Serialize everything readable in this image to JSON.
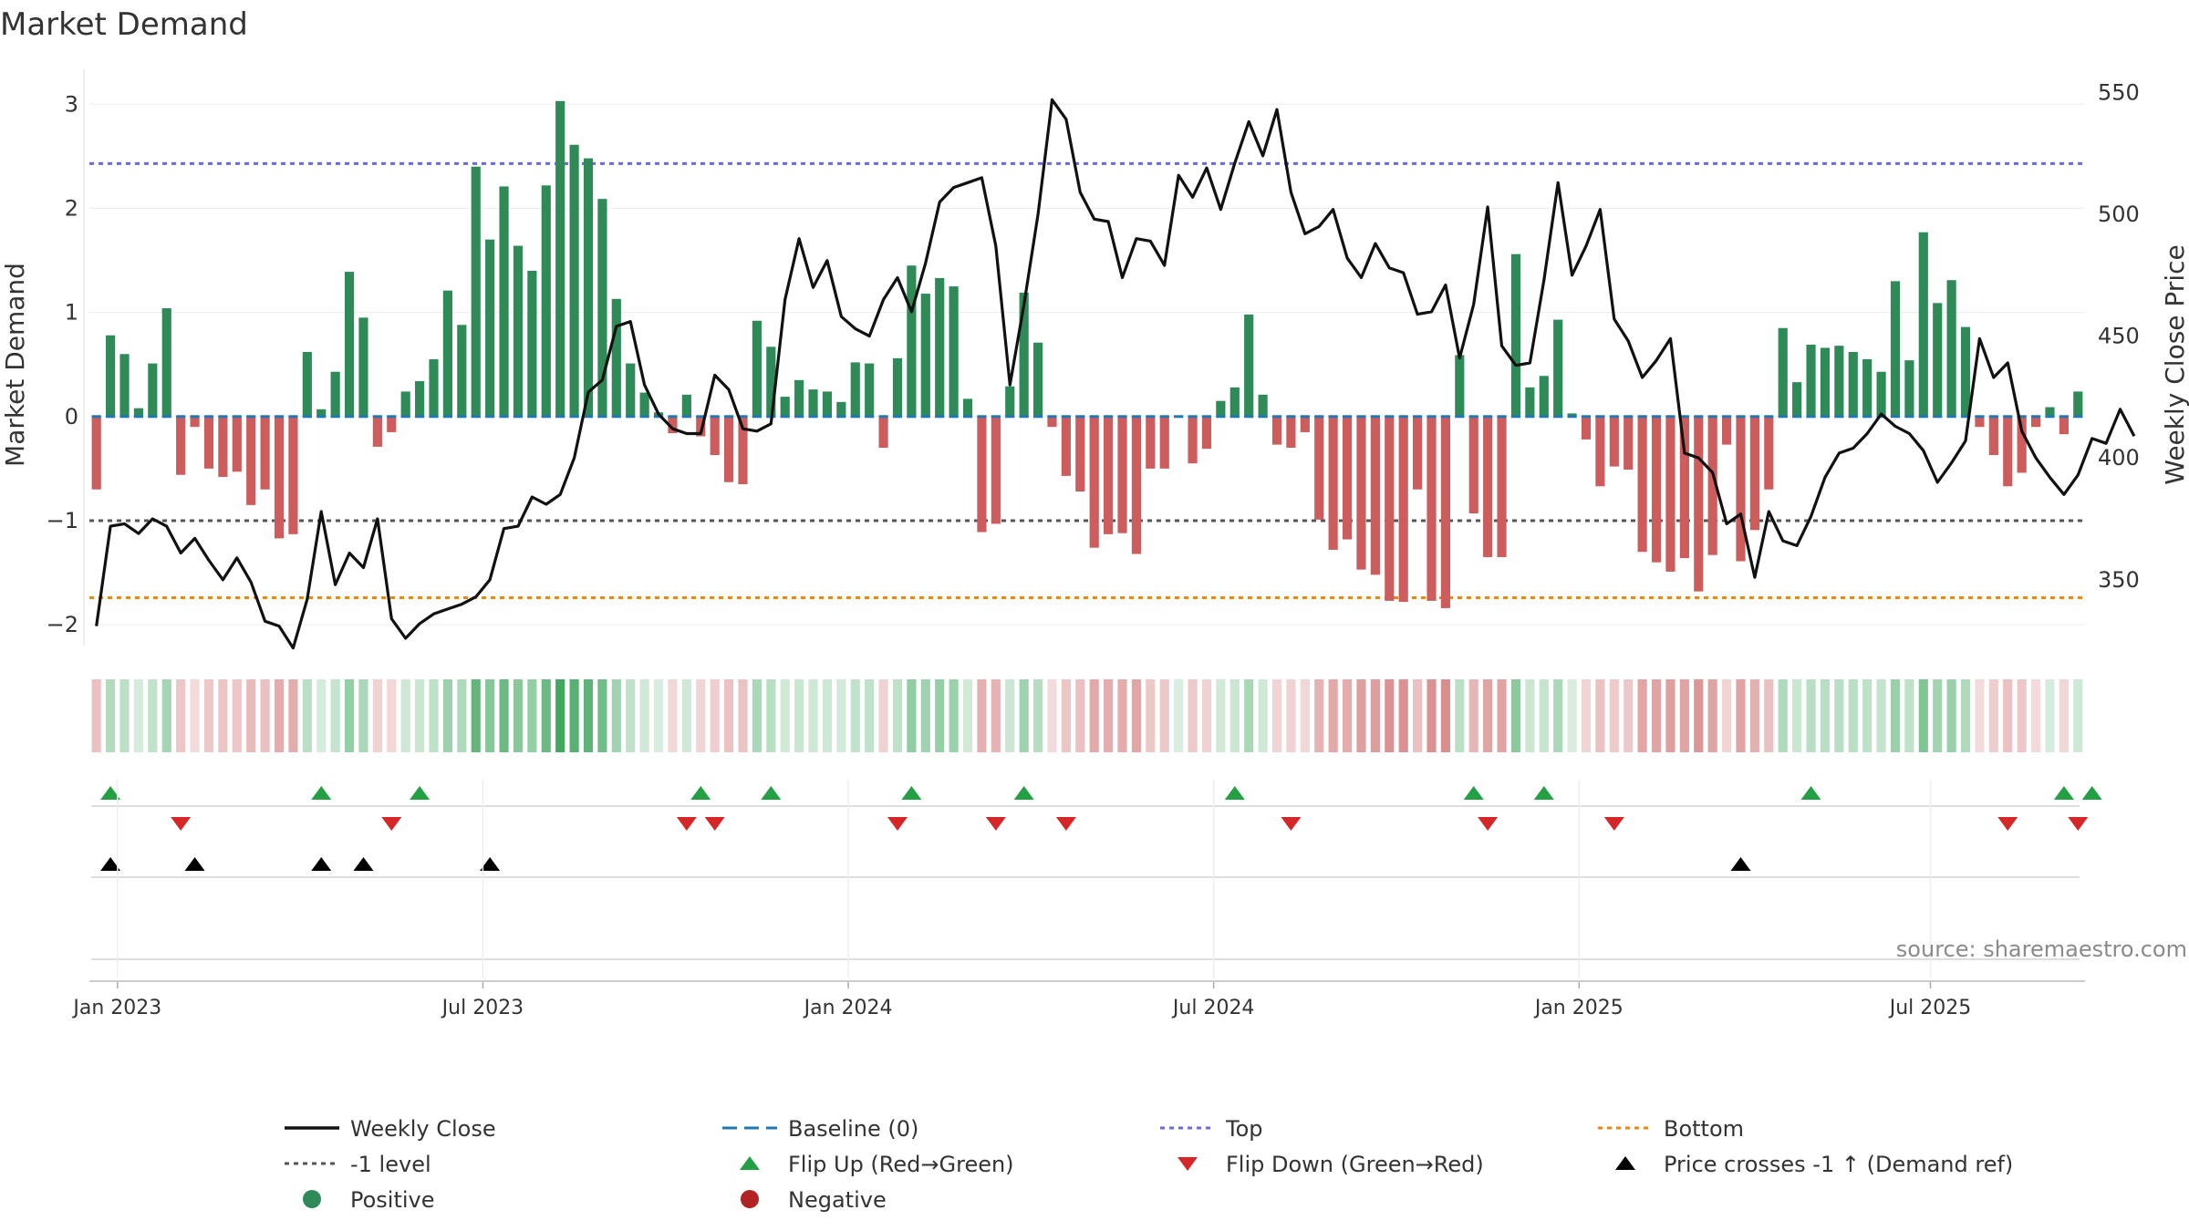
{
  "colors": {
    "positive_bar": "#2e8b57",
    "negative_bar": "#cd5c5c",
    "price_line": "#111111",
    "baseline": "#1f77b4",
    "top_line": "#6a6ad4",
    "bottom_line": "#e08a1e",
    "minus_one": "#555555",
    "flip_up": "#23a043",
    "flip_down": "#d62728",
    "cross": "#000000",
    "strip_positive": "#2e9e4f",
    "strip_negative": "#c44a4a"
  },
  "chart_data": {
    "type": "bar",
    "title": "Market Demand",
    "ylabel_left": "Market Demand",
    "ylabel_right": "Weekly Close Price",
    "ylim_left": [
      -2.2,
      3.3
    ],
    "ylim_right": [
      323,
      558
    ],
    "left_ticks": [
      "3",
      "2",
      "1",
      "0",
      "−1",
      "−2"
    ],
    "left_tick_values": [
      3,
      2,
      1,
      0,
      -1,
      -2
    ],
    "right_ticks": [
      "550",
      "500",
      "450",
      "400",
      "350"
    ],
    "right_tick_values": [
      550,
      500,
      450,
      400,
      350
    ],
    "top_level": 2.43,
    "bottom_level": -1.74,
    "minus_one_level": -1,
    "date_ticks": [
      "Jan 2023",
      "Jul 2023",
      "Jan 2024",
      "Jul 2024",
      "Jan 2025",
      "Jul 2025"
    ],
    "date_tick_week_index": [
      2,
      28,
      54,
      80,
      106,
      131
    ],
    "source": "source: sharemaestro.com",
    "series": [
      {
        "name": "Market Demand",
        "values": [
          -0.7,
          0.78,
          0.6,
          0.08,
          0.51,
          1.04,
          -0.56,
          -0.1,
          -0.5,
          -0.58,
          -0.53,
          -0.85,
          -0.7,
          -1.17,
          -1.13,
          0.62,
          0.07,
          0.43,
          1.39,
          0.95,
          -0.29,
          -0.15,
          0.24,
          0.34,
          0.55,
          1.21,
          0.88,
          2.4,
          1.7,
          2.21,
          1.64,
          1.4,
          2.22,
          3.03,
          2.61,
          2.48,
          2.09,
          1.13,
          0.51,
          0.23,
          0.04,
          -0.16,
          0.21,
          -0.19,
          -0.37,
          -0.63,
          -0.65,
          0.92,
          0.67,
          0.19,
          0.35,
          0.26,
          0.24,
          0.14,
          0.52,
          0.51,
          -0.3,
          0.56,
          1.45,
          1.18,
          1.33,
          1.25,
          0.17,
          -1.11,
          -1.03,
          0.29,
          1.19,
          0.71,
          -0.1,
          -0.57,
          -0.72,
          -1.26,
          -1.13,
          -1.12,
          -1.32,
          -0.5,
          -0.5,
          0.0,
          -0.45,
          -0.31,
          0.15,
          0.28,
          0.98,
          0.21,
          -0.27,
          -0.3,
          -0.15,
          -0.99,
          -1.28,
          -1.18,
          -1.47,
          -1.52,
          -1.77,
          -1.78,
          -0.7,
          -1.77,
          -1.84,
          0.59,
          -0.93,
          -1.35,
          -1.35,
          1.56,
          0.28,
          0.39,
          0.93,
          0.03,
          -0.22,
          -0.67,
          -0.48,
          -0.51,
          -1.3,
          -1.4,
          -1.49,
          -1.36,
          -1.68,
          -1.33,
          -0.27,
          -1.39,
          -1.09,
          -0.7,
          0.85,
          0.33,
          0.69,
          0.66,
          0.68,
          0.62,
          0.55,
          0.43,
          1.3,
          0.54,
          1.77,
          1.09,
          1.31,
          0.86,
          -0.1,
          -0.37,
          -0.67,
          -0.54,
          -0.1,
          0.09,
          -0.17,
          0.24
        ]
      },
      {
        "name": "Weekly Close",
        "values": [
          331,
          372,
          373,
          369,
          375,
          372,
          361,
          367,
          358,
          350,
          359,
          349,
          333,
          331,
          322,
          342,
          378,
          348,
          361,
          355,
          375,
          334,
          326,
          332,
          336,
          338,
          340,
          343,
          350,
          371,
          372,
          384,
          381,
          385,
          400,
          427,
          432,
          454,
          456,
          430,
          418,
          412,
          410,
          410,
          434,
          428,
          412,
          411,
          414,
          465,
          490,
          470,
          481,
          458,
          453,
          450,
          465,
          474,
          460,
          480,
          505,
          511,
          513,
          515,
          487,
          430,
          463,
          500,
          547,
          539,
          509,
          498,
          497,
          474,
          490,
          489,
          479,
          516,
          507,
          519,
          502,
          521,
          538,
          524,
          543,
          509,
          492,
          495,
          502,
          482,
          474,
          488,
          478,
          476,
          459,
          460,
          471,
          441,
          463,
          503,
          446,
          438,
          439,
          473,
          513,
          475,
          487,
          502,
          457,
          448,
          433,
          440,
          449,
          402,
          400,
          394,
          373,
          377,
          351,
          378,
          366,
          364,
          376,
          392,
          402,
          404,
          410,
          418,
          413,
          410,
          403,
          390,
          398,
          407,
          449,
          433,
          439,
          411,
          400,
          392,
          385,
          393,
          408,
          406,
          420,
          409
        ]
      }
    ],
    "flip_up_week_index": [
      1,
      16,
      23,
      43,
      48,
      58,
      66,
      81,
      98,
      103,
      122,
      140,
      142
    ],
    "flip_down_week_index": [
      6,
      21,
      42,
      44,
      57,
      64,
      69,
      85,
      99,
      108,
      136,
      141
    ],
    "price_cross_week_index": [
      1,
      7,
      16,
      19,
      28,
      117
    ]
  },
  "legend": {
    "items": [
      {
        "label": "Weekly Close",
        "kind": "solid-line",
        "color": "#111111"
      },
      {
        "label": "Baseline (0)",
        "kind": "dashed-line",
        "color": "#1f77b4"
      },
      {
        "label": "Top",
        "kind": "dotted-line",
        "color": "#6a6ad4"
      },
      {
        "label": "Bottom",
        "kind": "dotted-line",
        "color": "#e08a1e"
      },
      {
        "label": "-1 level",
        "kind": "dotted-line",
        "color": "#555555"
      },
      {
        "label": "Flip Up (Red→Green)",
        "kind": "triangle-up",
        "color": "#23a043"
      },
      {
        "label": "Flip Down (Green→Red)",
        "kind": "triangle-down",
        "color": "#d62728"
      },
      {
        "label": "Price crosses -1 ↑ (Demand ref)",
        "kind": "triangle-up",
        "color": "#000000"
      },
      {
        "label": "Positive",
        "kind": "circle",
        "color": "#2e8b57"
      },
      {
        "label": "Negative",
        "kind": "circle",
        "color": "#b22222"
      }
    ]
  }
}
